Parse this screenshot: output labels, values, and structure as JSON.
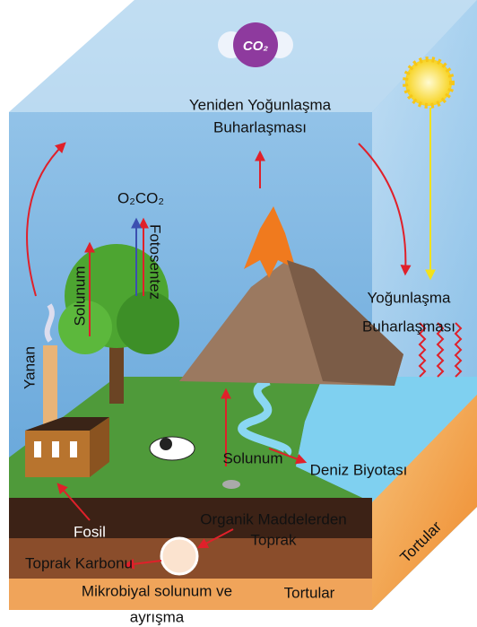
{
  "molecule": {
    "label": "CO₂"
  },
  "labels": {
    "top_1": "Yeniden Yoğunlaşma",
    "top_2": "Buharlaşması",
    "gases": "O₂CO₂",
    "photosynthesis": "Fotosentez",
    "respiration_tree": "Solunum",
    "burning": "Yanan",
    "sea_1": "Yoğunlaşma",
    "sea_2": "Buharlaşması",
    "respiration_animal": "Solunum",
    "marine_biota": "Deniz Biyotası",
    "fossil": "Fosil",
    "organic_1": "Organik Maddelerden",
    "organic_2": "Toprak",
    "soil_carbon": "Toprak Karbonu",
    "microbial_1": "Mikrobiyal solunum ve",
    "microbial_2": "ayrışma",
    "sediments_front": "Tortular",
    "sediments_side": "Tortular"
  }
}
